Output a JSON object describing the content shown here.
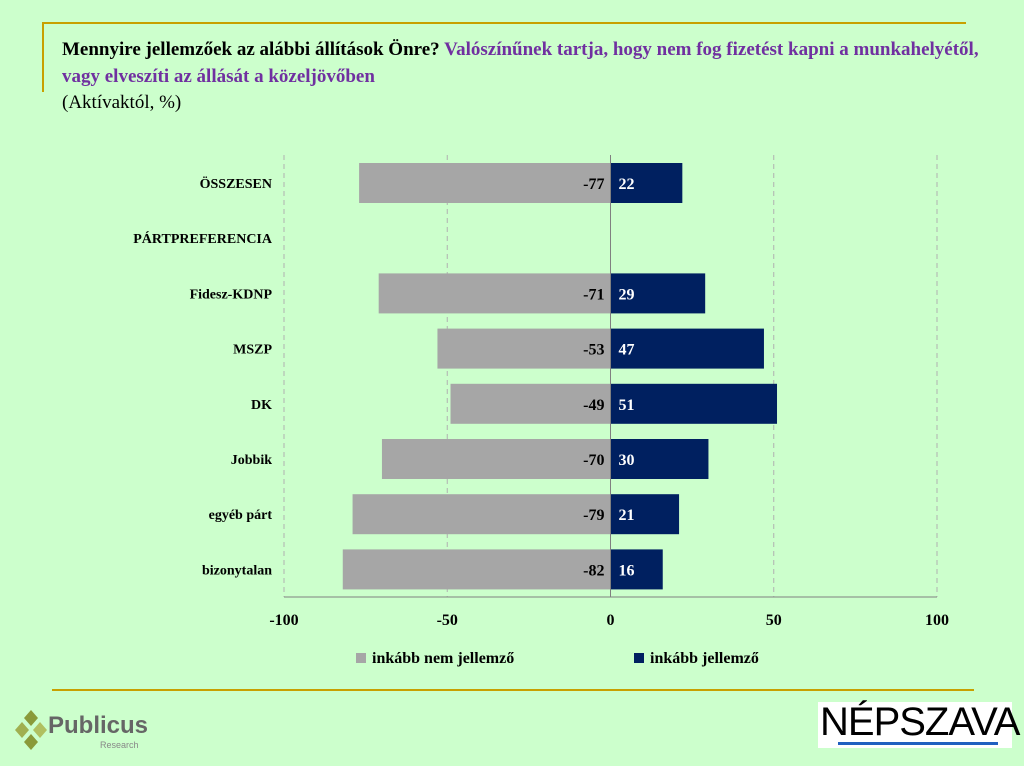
{
  "title": {
    "question": "Mennyire jellemzőek az alábbi állítások Önre?",
    "statement": "Valószínűnek tartja, hogy nem fog fizetést kapni a munkahelyétől, vagy elveszíti az állását a közeljövőben",
    "subtitle": "(Aktívaktól, %)"
  },
  "chart_data": {
    "type": "bar",
    "orientation": "horizontal",
    "stacked": "diverging",
    "categories": [
      "ÖSSZESEN",
      "PÁRTPREFERENCIA",
      "Fidesz-KDNP",
      "MSZP",
      "DK",
      "Jobbik",
      "egyéb párt",
      "bizonytalan"
    ],
    "series": [
      {
        "name": "inkább nem jellemző",
        "color": "#a6a6a6",
        "values": [
          -77,
          null,
          -71,
          -53,
          -49,
          -70,
          -79,
          -82
        ]
      },
      {
        "name": "inkább jellemző",
        "color": "#002060",
        "values": [
          22,
          null,
          29,
          47,
          51,
          30,
          21,
          16
        ]
      }
    ],
    "xlim": [
      -100,
      100
    ],
    "xticks": [
      -100,
      -50,
      0,
      50,
      100
    ],
    "grid": "vertical dashed",
    "legend": "bottom"
  },
  "logos": {
    "left": "Publicus",
    "left_sub": "Research",
    "right": "NÉPSZAVA"
  }
}
